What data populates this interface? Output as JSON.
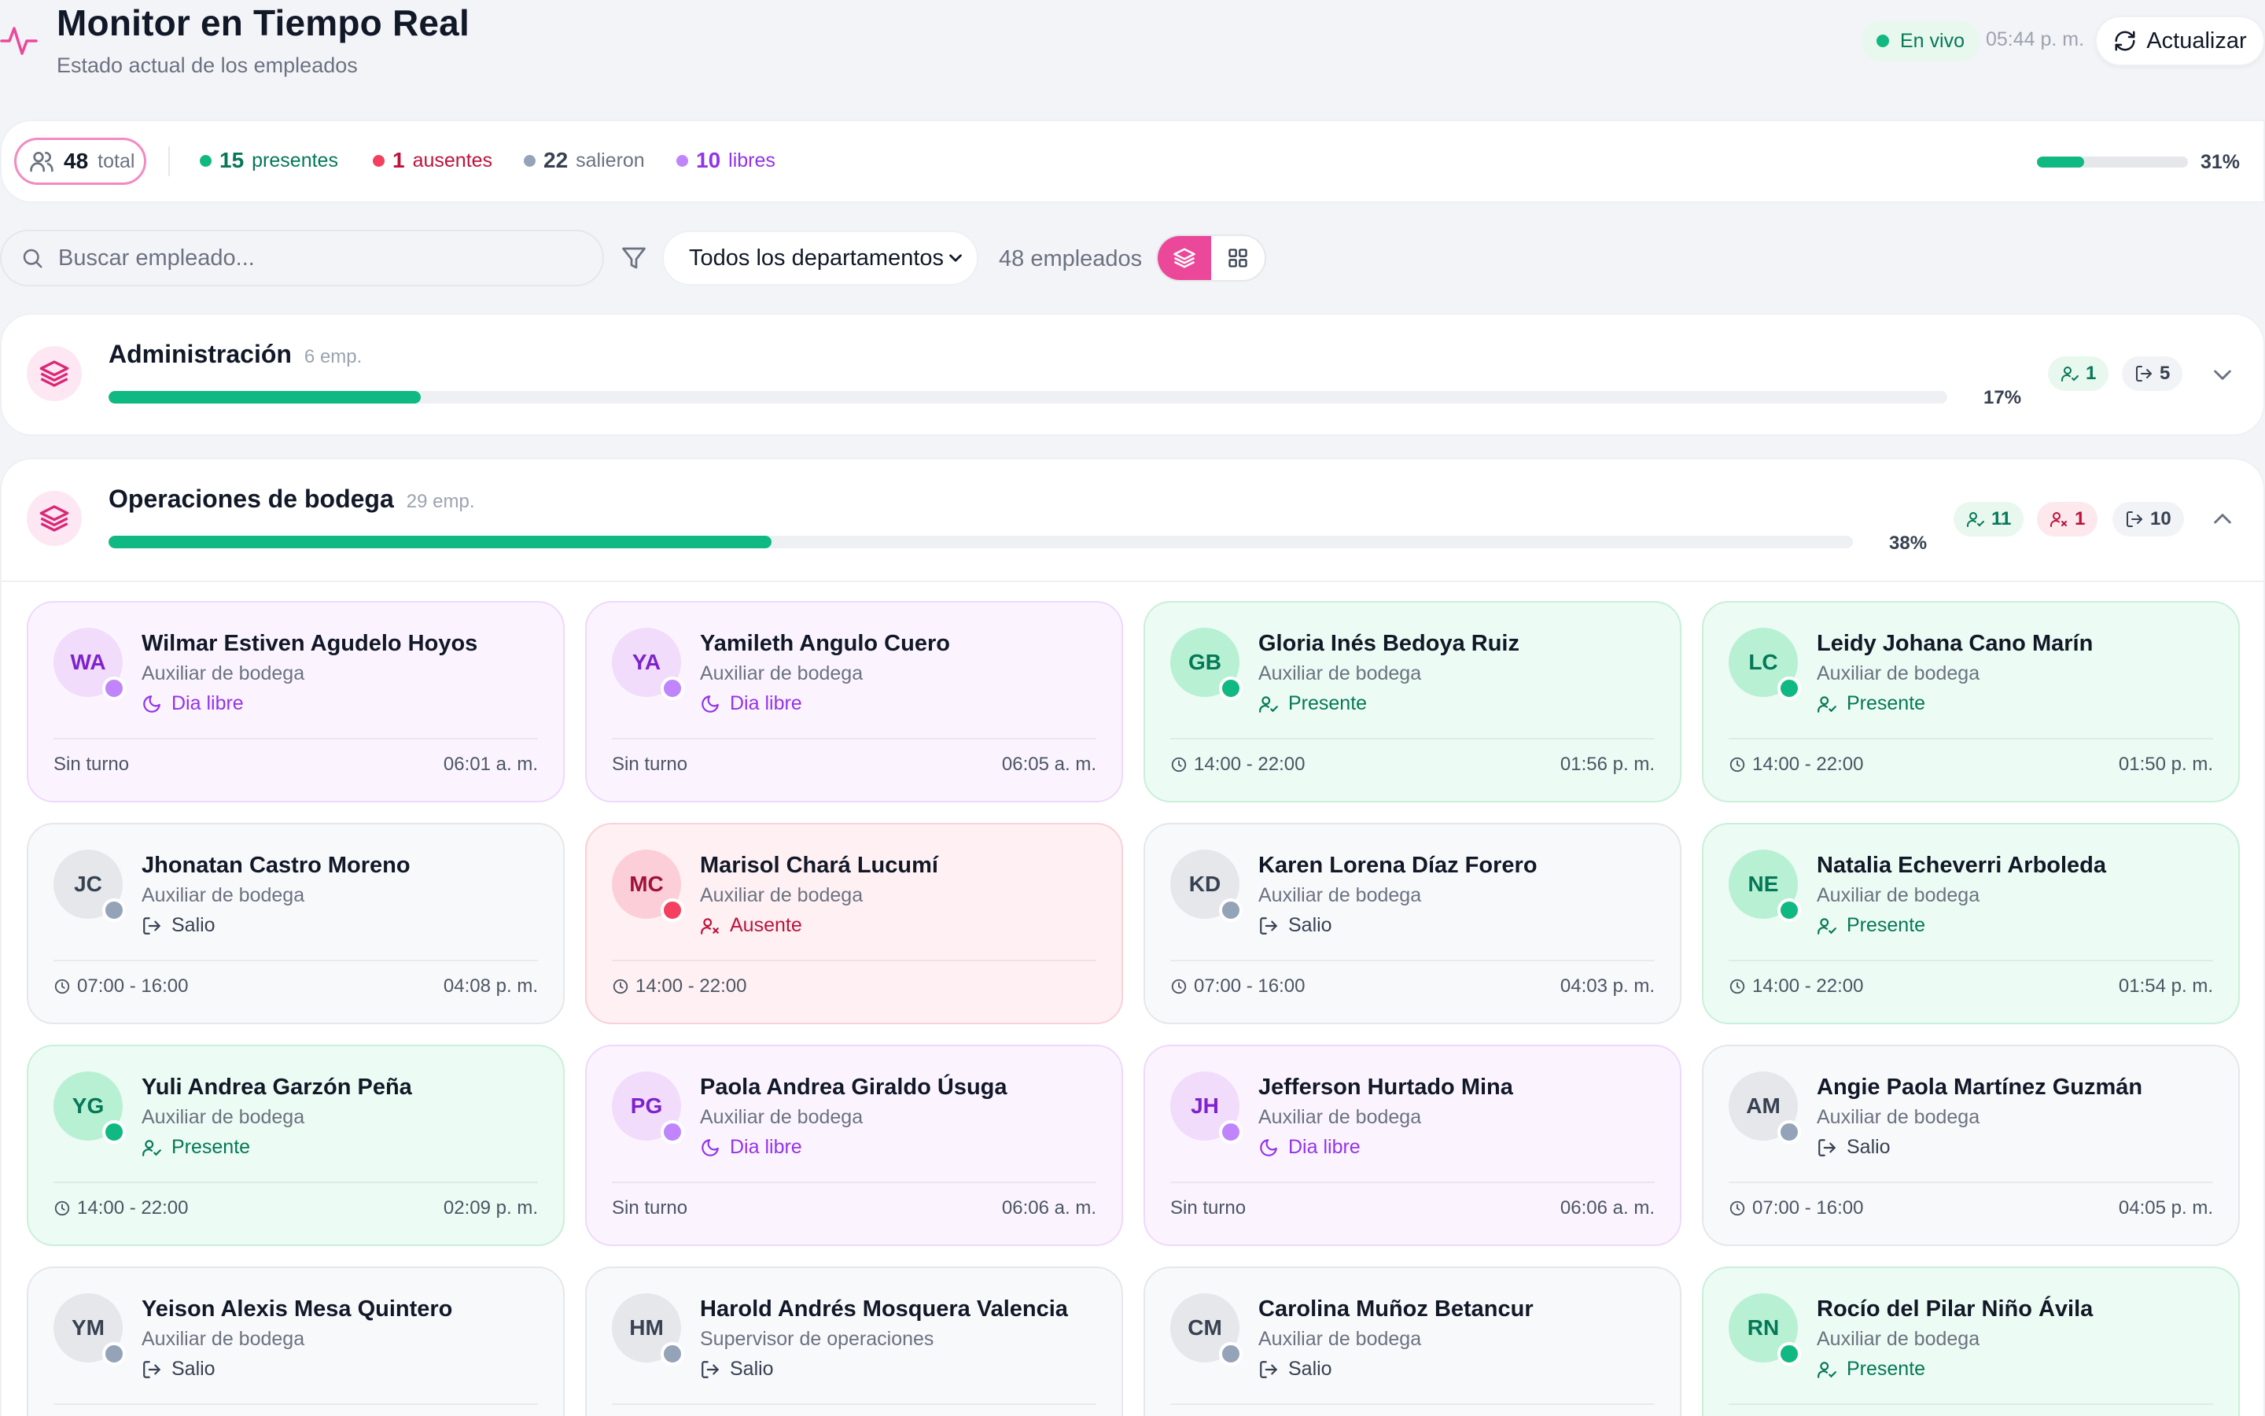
{
  "header": {
    "title": "Monitor en Tiempo Real",
    "subtitle": "Estado actual de los empleados",
    "live_label": "En vivo",
    "time": "05:44 p. m.",
    "refresh_label": "Actualizar"
  },
  "stats": {
    "total": "48",
    "total_label": "total",
    "presentes": "15",
    "presentes_label": "presentes",
    "ausentes": "1",
    "ausentes_label": "ausentes",
    "salieron": "22",
    "salieron_label": "salieron",
    "libres": "10",
    "libres_label": "libres",
    "percent": "31%",
    "progress_fraction": 0.31
  },
  "filters": {
    "search_placeholder": "Buscar empleado...",
    "department_selected": "Todos los departamentos",
    "count_label": "48 empleados"
  },
  "departments": [
    {
      "name": "Administración",
      "emp_label": "6 emp.",
      "percent": "17%",
      "progress_fraction": 0.17,
      "present_count": "1",
      "left_count": "5"
    },
    {
      "name": "Operaciones de bodega",
      "emp_label": "29 emp.",
      "percent": "38%",
      "progress_fraction": 0.38,
      "present_count": "11",
      "absent_count": "1",
      "left_count": "10"
    }
  ],
  "employees": [
    {
      "initials": "WA",
      "name": "Wilmar Estiven Agudelo Hoyos",
      "role": "Auxiliar de bodega",
      "status": "libre",
      "status_label": "Dia libre",
      "shift": "Sin turno",
      "time": "06:01 a. m."
    },
    {
      "initials": "YA",
      "name": "Yamileth Angulo Cuero",
      "role": "Auxiliar de bodega",
      "status": "libre",
      "status_label": "Dia libre",
      "shift": "Sin turno",
      "time": "06:05 a. m."
    },
    {
      "initials": "GB",
      "name": "Gloria Inés Bedoya Ruiz",
      "role": "Auxiliar de bodega",
      "status": "presente",
      "status_label": "Presente",
      "shift": "14:00 - 22:00",
      "time": "01:56 p. m."
    },
    {
      "initials": "LC",
      "name": "Leidy Johana Cano Marín",
      "role": "Auxiliar de bodega",
      "status": "presente",
      "status_label": "Presente",
      "shift": "14:00 - 22:00",
      "time": "01:50 p. m."
    },
    {
      "initials": "JC",
      "name": "Jhonatan Castro Moreno",
      "role": "Auxiliar de bodega",
      "status": "salio",
      "status_label": "Salio",
      "shift": "07:00 - 16:00",
      "time": "04:08 p. m."
    },
    {
      "initials": "MC",
      "name": "Marisol Chará Lucumí",
      "role": "Auxiliar de bodega",
      "status": "ausente",
      "status_label": "Ausente",
      "shift": "14:00 - 22:00",
      "time": ""
    },
    {
      "initials": "KD",
      "name": "Karen Lorena Díaz Forero",
      "role": "Auxiliar de bodega",
      "status": "salio",
      "status_label": "Salio",
      "shift": "07:00 - 16:00",
      "time": "04:03 p. m."
    },
    {
      "initials": "NE",
      "name": "Natalia Echeverri Arboleda",
      "role": "Auxiliar de bodega",
      "status": "presente",
      "status_label": "Presente",
      "shift": "14:00 - 22:00",
      "time": "01:54 p. m."
    },
    {
      "initials": "YG",
      "name": "Yuli Andrea Garzón Peña",
      "role": "Auxiliar de bodega",
      "status": "presente",
      "status_label": "Presente",
      "shift": "14:00 - 22:00",
      "time": "02:09 p. m."
    },
    {
      "initials": "PG",
      "name": "Paola Andrea Giraldo Úsuga",
      "role": "Auxiliar de bodega",
      "status": "libre",
      "status_label": "Dia libre",
      "shift": "Sin turno",
      "time": "06:06 a. m."
    },
    {
      "initials": "JH",
      "name": "Jefferson Hurtado Mina",
      "role": "Auxiliar de bodega",
      "status": "libre",
      "status_label": "Dia libre",
      "shift": "Sin turno",
      "time": "06:06 a. m."
    },
    {
      "initials": "AM",
      "name": "Angie Paola Martínez Guzmán",
      "role": "Auxiliar de bodega",
      "status": "salio",
      "status_label": "Salio",
      "shift": "07:00 - 16:00",
      "time": "04:05 p. m."
    },
    {
      "initials": "YM",
      "name": "Yeison Alexis Mesa Quintero",
      "role": "Auxiliar de bodega",
      "status": "salio",
      "status_label": "Salio",
      "shift": "",
      "time": ""
    },
    {
      "initials": "HM",
      "name": "Harold Andrés Mosquera Valencia",
      "role": "Supervisor de operaciones",
      "status": "salio",
      "status_label": "Salio",
      "shift": "",
      "time": ""
    },
    {
      "initials": "CM",
      "name": "Carolina Muñoz Betancur",
      "role": "Auxiliar de bodega",
      "status": "salio",
      "status_label": "Salio",
      "shift": "",
      "time": ""
    },
    {
      "initials": "RN",
      "name": "Rocío del Pilar Niño Ávila",
      "role": "Auxiliar de bodega",
      "status": "presente",
      "status_label": "Presente",
      "shift": "",
      "time": ""
    }
  ],
  "colors": {
    "accent": "#ec4899",
    "present": "#10b981",
    "absent": "#f43f5e",
    "left": "#94a3b8",
    "free": "#c084fc"
  }
}
